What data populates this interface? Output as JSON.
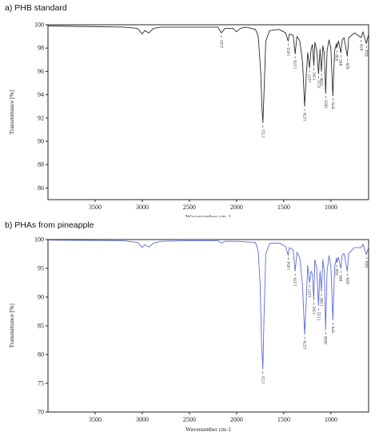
{
  "chart_data": [
    {
      "type": "line",
      "title": "a) PHB standard",
      "xlabel": "Wavenumber cm-1",
      "ylabel": "Transmittance [%]",
      "xlim": [
        4000,
        600
      ],
      "ylim": [
        85,
        100
      ],
      "x_reversed": true,
      "xticks": [
        3500,
        3000,
        2500,
        2000,
        1500,
        1000
      ],
      "yticks": [
        86,
        88,
        90,
        92,
        94,
        96,
        98,
        100
      ],
      "grid": false,
      "line_color": "#2b2b2b",
      "points": [
        [
          4000,
          99.9
        ],
        [
          3200,
          99.8
        ],
        [
          3050,
          99.7
        ],
        [
          3000,
          99.2
        ],
        [
          2975,
          99.5
        ],
        [
          2930,
          99.3
        ],
        [
          2880,
          99.7
        ],
        [
          2800,
          99.8
        ],
        [
          2500,
          99.8
        ],
        [
          2200,
          99.8
        ],
        [
          2161,
          99.3
        ],
        [
          2120,
          99.7
        ],
        [
          2040,
          99.7
        ],
        [
          2000,
          99.4
        ],
        [
          1960,
          99.7
        ],
        [
          1900,
          99.8
        ],
        [
          1800,
          99.6
        ],
        [
          1770,
          99.0
        ],
        [
          1745,
          96.0
        ],
        [
          1730,
          92.8
        ],
        [
          1721,
          91.6
        ],
        [
          1710,
          94.0
        ],
        [
          1690,
          98.6
        ],
        [
          1650,
          99.5
        ],
        [
          1550,
          99.6
        ],
        [
          1480,
          99.3
        ],
        [
          1453,
          98.6
        ],
        [
          1440,
          99.2
        ],
        [
          1400,
          99.1
        ],
        [
          1379,
          97.5
        ],
        [
          1360,
          99.0
        ],
        [
          1330,
          98.6
        ],
        [
          1300,
          96.8
        ],
        [
          1278,
          93.0
        ],
        [
          1262,
          95.5
        ],
        [
          1245,
          97.6
        ],
        [
          1227,
          96.3
        ],
        [
          1210,
          97.9
        ],
        [
          1195,
          98.3
        ],
        [
          1181,
          96.5
        ],
        [
          1170,
          98.5
        ],
        [
          1150,
          97.8
        ],
        [
          1131,
          95.8
        ],
        [
          1115,
          97.9
        ],
        [
          1100,
          96.0
        ],
        [
          1085,
          98.2
        ],
        [
          1070,
          97.5
        ],
        [
          1055,
          94.1
        ],
        [
          1040,
          97.8
        ],
        [
          1020,
          98.7
        ],
        [
          1000,
          98.0
        ],
        [
          979,
          93.9
        ],
        [
          960,
          97.8
        ],
        [
          940,
          98.4
        ],
        [
          938,
          98.0
        ],
        [
          920,
          98.6
        ],
        [
          895,
          97.6
        ],
        [
          880,
          98.7
        ],
        [
          860,
          98.9
        ],
        [
          826,
          97.3
        ],
        [
          810,
          98.9
        ],
        [
          750,
          99.3
        ],
        [
          678,
          98.9
        ],
        [
          660,
          99.4
        ],
        [
          624,
          98.4
        ],
        [
          600,
          99.2
        ]
      ],
      "peak_labels": [
        {
          "x": 2161,
          "label": "2161"
        },
        {
          "x": 1721,
          "label": "1721"
        },
        {
          "x": 1453,
          "label": "1453"
        },
        {
          "x": 1379,
          "label": "1379"
        },
        {
          "x": 1278,
          "label": "1278"
        },
        {
          "x": 1227,
          "label": "1227"
        },
        {
          "x": 1181,
          "label": "1181"
        },
        {
          "x": 1131,
          "label": "1131"
        },
        {
          "x": 1100,
          "label": "1100"
        },
        {
          "x": 1055,
          "label": "1055"
        },
        {
          "x": 979,
          "label": "979"
        },
        {
          "x": 938,
          "label": "938"
        },
        {
          "x": 895,
          "label": "895"
        },
        {
          "x": 826,
          "label": "826"
        },
        {
          "x": 678,
          "label": "678"
        },
        {
          "x": 624,
          "label": "624"
        }
      ]
    },
    {
      "type": "line",
      "title": "b) PHAs from pineapple",
      "xlabel": "Wavenumber cm-1",
      "ylabel": "Transmittance [%]",
      "xlim": [
        4000,
        600
      ],
      "ylim": [
        70,
        100
      ],
      "x_reversed": true,
      "xticks": [
        3500,
        3000,
        2500,
        2000,
        1500,
        1000
      ],
      "yticks": [
        70,
        75,
        80,
        85,
        90,
        95,
        100
      ],
      "grid": false,
      "line_color": "#5a6be0",
      "points": [
        [
          4000,
          99.9
        ],
        [
          3200,
          99.8
        ],
        [
          3050,
          99.5
        ],
        [
          3000,
          98.6
        ],
        [
          2975,
          99.1
        ],
        [
          2930,
          98.7
        ],
        [
          2880,
          99.4
        ],
        [
          2800,
          99.7
        ],
        [
          2500,
          99.8
        ],
        [
          2200,
          99.8
        ],
        [
          2161,
          99.4
        ],
        [
          2120,
          99.7
        ],
        [
          2000,
          99.7
        ],
        [
          1800,
          99.5
        ],
        [
          1770,
          98.0
        ],
        [
          1750,
          92.0
        ],
        [
          1735,
          82.0
        ],
        [
          1721,
          77.5
        ],
        [
          1710,
          86.0
        ],
        [
          1690,
          97.5
        ],
        [
          1650,
          99.3
        ],
        [
          1550,
          99.4
        ],
        [
          1480,
          98.8
        ],
        [
          1454,
          97.3
        ],
        [
          1440,
          98.6
        ],
        [
          1400,
          98.2
        ],
        [
          1379,
          94.5
        ],
        [
          1360,
          97.8
        ],
        [
          1330,
          96.8
        ],
        [
          1300,
          92.0
        ],
        [
          1278,
          83.5
        ],
        [
          1262,
          89.0
        ],
        [
          1245,
          95.5
        ],
        [
          1227,
          92.5
        ],
        [
          1210,
          94.5
        ],
        [
          1195,
          94.0
        ],
        [
          1182,
          89.5
        ],
        [
          1170,
          96.5
        ],
        [
          1150,
          95.0
        ],
        [
          1132,
          88.5
        ],
        [
          1115,
          94.5
        ],
        [
          1100,
          91.0
        ],
        [
          1085,
          96.5
        ],
        [
          1070,
          94.5
        ],
        [
          1056,
          84.3
        ],
        [
          1040,
          94.5
        ],
        [
          1020,
          97.2
        ],
        [
          1000,
          95.5
        ],
        [
          979,
          86.0
        ],
        [
          960,
          95.2
        ],
        [
          940,
          96.8
        ],
        [
          938,
          96.0
        ],
        [
          920,
          96.9
        ],
        [
          895,
          95.0
        ],
        [
          880,
          97.3
        ],
        [
          860,
          97.6
        ],
        [
          826,
          94.5
        ],
        [
          810,
          97.6
        ],
        [
          750,
          98.6
        ],
        [
          678,
          98.6
        ],
        [
          660,
          99.2
        ],
        [
          624,
          97.4
        ],
        [
          600,
          98.7
        ]
      ],
      "peak_labels": [
        {
          "x": 1721,
          "label": "1721"
        },
        {
          "x": 1454,
          "label": "1454"
        },
        {
          "x": 1379,
          "label": "1379"
        },
        {
          "x": 1278,
          "label": "1278"
        },
        {
          "x": 1227,
          "label": "1227"
        },
        {
          "x": 1182,
          "label": "1182"
        },
        {
          "x": 1132,
          "label": "1132"
        },
        {
          "x": 1100,
          "label": "1100"
        },
        {
          "x": 1056,
          "label": "1056"
        },
        {
          "x": 979,
          "label": "979"
        },
        {
          "x": 938,
          "label": "938"
        },
        {
          "x": 895,
          "label": "895"
        },
        {
          "x": 826,
          "label": "826"
        },
        {
          "x": 624,
          "label": "624"
        }
      ]
    }
  ]
}
